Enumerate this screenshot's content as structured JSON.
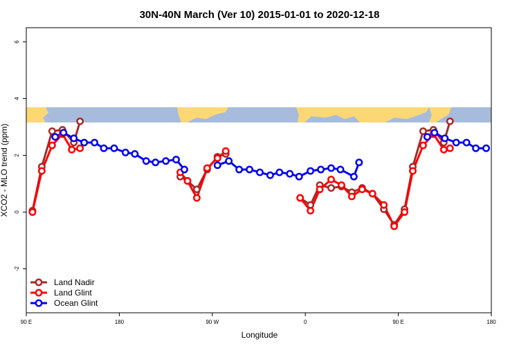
{
  "chart_data": {
    "type": "line",
    "title": "30N-40N March (Ver 10)   2015-01-01 to 2020-12-18",
    "x_label": "Longitude",
    "y_label": "XCO2 - MLO trend (ppm)",
    "xlim": [
      90,
      540
    ],
    "ylim": [
      -3.55,
      6.5
    ],
    "xticks": [
      {
        "value": 90,
        "label": "90 E"
      },
      180,
      {
        "value": 270,
        "label": "90 W"
      },
      {
        "value": 360,
        "label": "0"
      },
      {
        "value": 450,
        "label": "90 E"
      },
      {
        "value": 540,
        "label": "180"
      }
    ],
    "yticks": [
      -2,
      0,
      2,
      4,
      6
    ],
    "legend": "bottom-left",
    "series": [
      {
        "name": "Land Nadir",
        "color": "#a52a2a",
        "x": [
          96,
          105,
          115,
          125,
          136,
          142,
          null,
          239,
          246,
          255,
          265,
          275,
          283,
          null,
          355,
          365,
          374,
          385,
          395,
          405,
          415,
          425,
          436,
          446,
          456,
          464,
          474,
          484,
          494,
          500
        ],
        "values": [
          0.05,
          1.6,
          2.85,
          2.9,
          2.45,
          3.2,
          null,
          1.25,
          1.1,
          0.8,
          1.5,
          1.95,
          2.05,
          null,
          0.5,
          0.25,
          0.95,
          0.85,
          0.9,
          0.7,
          0.85,
          0.65,
          0.1,
          -0.45,
          0.1,
          1.6,
          2.85,
          2.9,
          2.45,
          3.2
        ]
      },
      {
        "name": "Land Glint",
        "color": "#ff0000",
        "x": [
          96,
          105,
          115,
          125,
          134,
          142,
          null,
          239,
          246,
          255,
          265,
          275,
          283,
          null,
          355,
          365,
          374,
          385,
          395,
          405,
          415,
          425,
          436,
          446,
          456,
          464,
          474,
          484,
          494,
          500
        ],
        "values": [
          0,
          1.45,
          2.35,
          2.75,
          2.2,
          2.25,
          null,
          1.4,
          1.1,
          0.5,
          1.55,
          1.9,
          2.15,
          null,
          0.5,
          0.05,
          0.8,
          1.15,
          0.95,
          0.55,
          0.8,
          0.65,
          0.25,
          -0.5,
          0,
          1.45,
          2.35,
          2.75,
          2.2,
          2.25
        ]
      },
      {
        "name": "Ocean Glint",
        "color": "#0000ee",
        "x": [
          118,
          126,
          136,
          146,
          156,
          165,
          175,
          186,
          195,
          206,
          215,
          225,
          235,
          243,
          null,
          275,
          286,
          296,
          306,
          316,
          326,
          335,
          345,
          354,
          365,
          375,
          385,
          394,
          407,
          412,
          null,
          478,
          485,
          495,
          506,
          516,
          525,
          535
        ],
        "values": [
          2.65,
          2.8,
          2.6,
          2.45,
          2.45,
          2.25,
          2.25,
          2.1,
          2.05,
          1.8,
          1.75,
          1.8,
          1.85,
          1.5,
          null,
          1.65,
          1.8,
          1.5,
          1.5,
          1.4,
          1.3,
          1.4,
          1.35,
          1.25,
          1.45,
          1.5,
          1.55,
          1.5,
          1.25,
          1.75,
          null,
          2.65,
          2.8,
          2.6,
          2.45,
          2.45,
          2.25,
          2.25
        ]
      }
    ]
  }
}
